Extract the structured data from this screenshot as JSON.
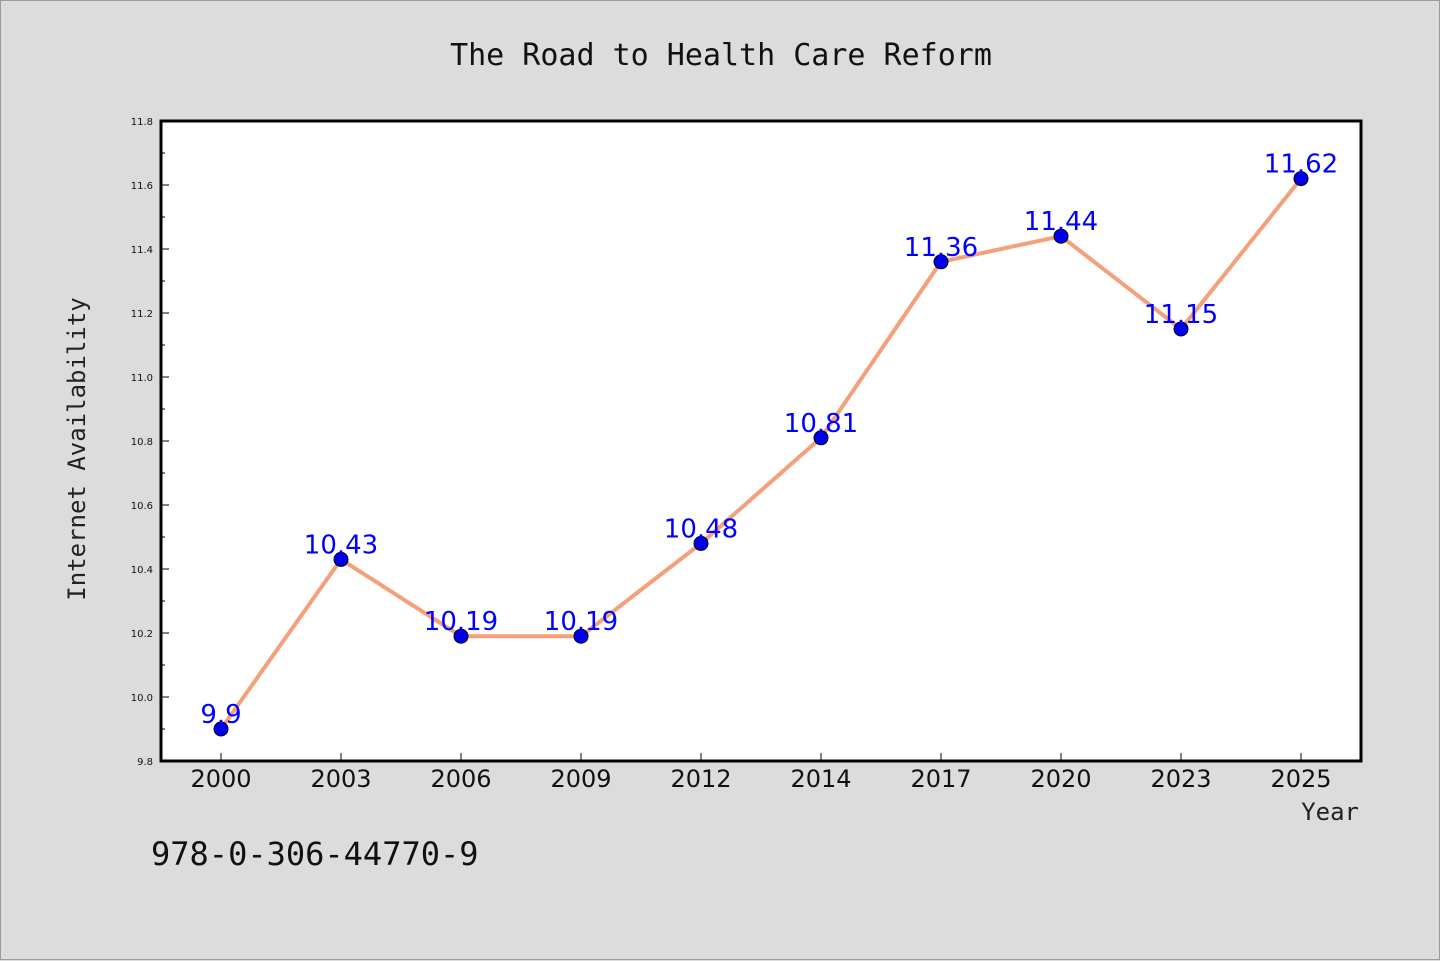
{
  "chart_data": {
    "type": "line",
    "title": "The Road to Health Care Reform",
    "xlabel": "Year",
    "ylabel": "Internet Availability",
    "categories": [
      "2000",
      "2003",
      "2006",
      "2009",
      "2012",
      "2014",
      "2017",
      "2020",
      "2023",
      "2025"
    ],
    "series": [
      {
        "values": [
          9.9,
          10.43,
          10.19,
          10.19,
          10.48,
          10.81,
          11.36,
          11.44,
          11.15,
          11.62
        ],
        "labels": [
          "9.9",
          "10.43",
          "10.19",
          "10.19",
          "10.48",
          "10.81",
          "11.36",
          "11.44",
          "11.15",
          "11.62"
        ],
        "line_color": "#f4a07a",
        "marker_color": "#0000ee"
      }
    ],
    "ylim": [
      9.8,
      11.8
    ],
    "yticks": [
      "9.8",
      "10.0",
      "10.2",
      "10.4",
      "10.6",
      "10.8",
      "11.0",
      "11.2",
      "11.4",
      "11.6",
      "11.8"
    ],
    "grid": false,
    "legend": "none",
    "label_color": "#0000ff"
  },
  "footer": {
    "isbn": "978-0-306-44770-9"
  }
}
